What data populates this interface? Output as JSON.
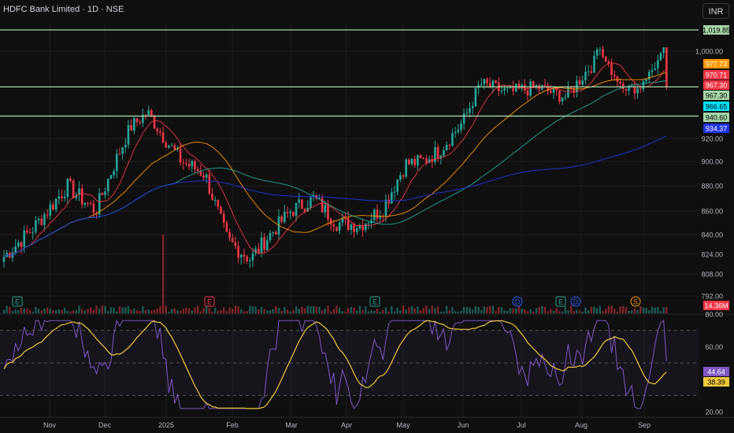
{
  "header": {
    "title": "HDFC Bank Limited · 1D · NSE",
    "currency": "INR"
  },
  "chart_data": {
    "type": "candlestick",
    "price_axis": {
      "ticks": [
        "1,000.00",
        "920.00",
        "900.00",
        "880.00",
        "860.00",
        "840.00",
        "824.00",
        "808.00",
        "792.00"
      ]
    },
    "time_axis": {
      "ticks": [
        "Nov",
        "Dec",
        "2025",
        "Feb",
        "Mar",
        "Apr",
        "May",
        "Jun",
        "Jul",
        "Aug",
        "Sep"
      ]
    },
    "horizontal_levels": [
      1019.85,
      967.3,
      940.6
    ],
    "price_labels": [
      {
        "text": "1,019.85",
        "color": "#a5d6a7",
        "dark_text": true
      },
      {
        "text": "977.73",
        "color": "#ff9800",
        "dark_text": false
      },
      {
        "text": "970.71",
        "color": "#f23645",
        "dark_text": false
      },
      {
        "text": "967.30",
        "color": "#f23645",
        "dark_text": false
      },
      {
        "text": "967.30",
        "color": "#a5d6a7",
        "dark_text": true
      },
      {
        "text": "966.65",
        "color": "#00e5ff",
        "dark_text": true
      },
      {
        "text": "940.60",
        "color": "#a5d6a7",
        "dark_text": true
      },
      {
        "text": "934.37",
        "color": "#2135e6",
        "dark_text": false
      },
      {
        "text": "14.36M",
        "color": "#f23645",
        "dark_text": false
      }
    ],
    "event_markers": [
      "E",
      "E",
      "E",
      "D",
      "E",
      "D",
      "S"
    ],
    "moving_averages": [
      {
        "color": "#f23645"
      },
      {
        "color": "#ff9800"
      },
      {
        "color": "#26a69a"
      },
      {
        "color": "#2135e6"
      }
    ],
    "rsi": {
      "ticks": [
        "80.00",
        "60.00",
        "20.00"
      ],
      "overbought": 70,
      "oversold": 30,
      "rsi_value": "44.64",
      "signal_value": "38.39"
    },
    "colors": {
      "up": "#26a69a",
      "down": "#f23645",
      "level": "#a5d6a7",
      "rsi": "#7e57c2",
      "rsi_ma": "#f0c83c"
    }
  }
}
